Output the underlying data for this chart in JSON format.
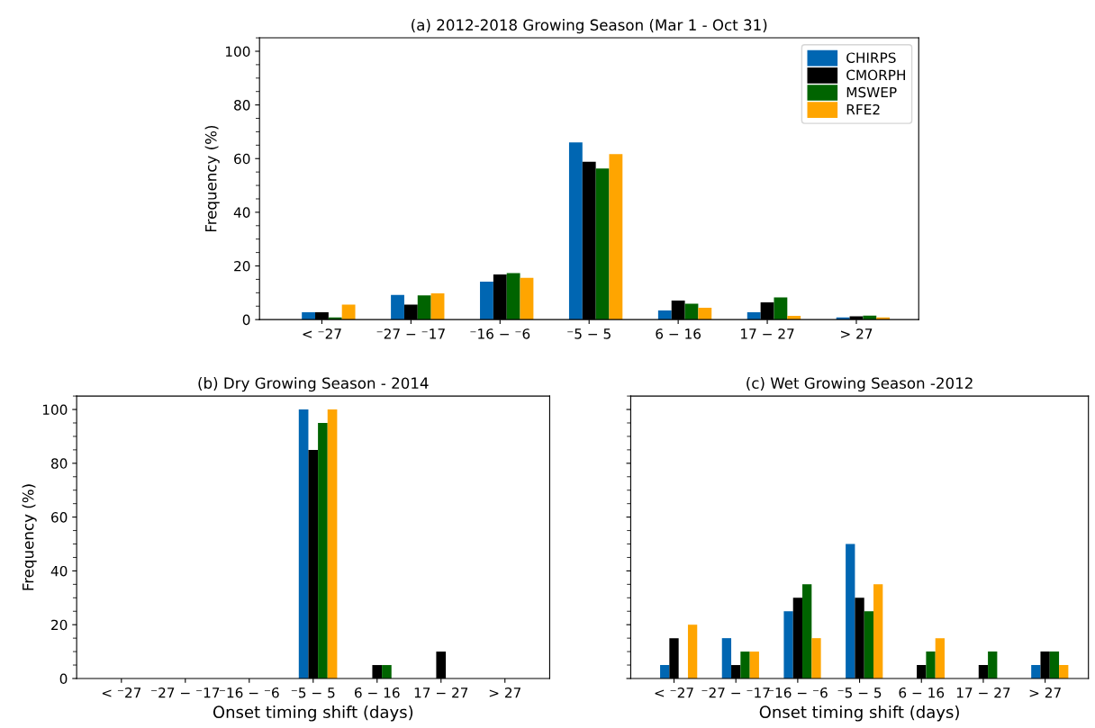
{
  "chart_data": [
    {
      "type": "bar",
      "title": "(a) 2012-2018 Growing Season (Mar 1 - Oct 31)",
      "ylabel": "Frequency (%)",
      "categories": [
        "< ⁻27",
        "⁻27 − ⁻17",
        "⁻16 − ⁻6",
        "⁻5 − 5",
        "6 − 16",
        "17 − 27",
        "> 27"
      ],
      "series": [
        {
          "name": "CHIRPS",
          "color": "#0066b2",
          "values": [
            2.7,
            9.2,
            14.1,
            66,
            3.4,
            2.7,
            0.8
          ]
        },
        {
          "name": "CMORPH",
          "color": "#000000",
          "values": [
            2.7,
            5.6,
            16.8,
            58.8,
            7.1,
            6.4,
            1.2
          ]
        },
        {
          "name": "MSWEP",
          "color": "#006400",
          "values": [
            0.8,
            9.0,
            17.3,
            56.3,
            5.9,
            8.3,
            1.5
          ]
        },
        {
          "name": "RFE2",
          "color": "#ffa500",
          "values": [
            5.6,
            9.8,
            15.6,
            61.7,
            4.4,
            1.4,
            0.8
          ]
        }
      ],
      "ylim": [
        0,
        105
      ],
      "yticks": [
        0,
        20,
        40,
        60,
        80,
        100
      ],
      "legend": "top right",
      "grid": false
    },
    {
      "type": "bar",
      "title": "(b) Dry Growing Season - 2014",
      "ylabel": "Frequency (%)",
      "xlabel": "Onset timing shift (days)",
      "categories": [
        "< ⁻27",
        "⁻27 − ⁻17",
        "⁻16 − ⁻6",
        "⁻5 − 5",
        "6 − 16",
        "17 − 27",
        "> 27"
      ],
      "series": [
        {
          "color": "#0066b2",
          "values": [
            0,
            0,
            0,
            100,
            0,
            0,
            0
          ]
        },
        {
          "color": "#000000",
          "values": [
            0,
            0,
            0,
            85,
            5,
            10,
            0
          ]
        },
        {
          "color": "#006400",
          "values": [
            0,
            0,
            0,
            95,
            5,
            0,
            0
          ]
        },
        {
          "color": "#ffa500",
          "values": [
            0,
            0,
            0,
            100,
            0,
            0,
            0
          ]
        }
      ],
      "ylim": [
        0,
        105
      ],
      "yticks": [
        0,
        20,
        40,
        60,
        80,
        100
      ],
      "grid": false
    },
    {
      "type": "bar",
      "title": "(c) Wet Growing Season -2012",
      "xlabel": "Onset timing shift (days)",
      "categories": [
        "< ⁻27",
        "⁻27 − ⁻17",
        "⁻16 − ⁻6",
        "⁻5 − 5",
        "6 − 16",
        "17 − 27",
        "> 27"
      ],
      "series": [
        {
          "color": "#0066b2",
          "values": [
            5,
            15,
            25,
            50,
            0,
            0,
            5
          ]
        },
        {
          "color": "#000000",
          "values": [
            15,
            5,
            30,
            30,
            5,
            5,
            10
          ]
        },
        {
          "color": "#006400",
          "values": [
            0,
            10,
            35,
            25,
            10,
            10,
            10
          ]
        },
        {
          "color": "#ffa500",
          "values": [
            20,
            10,
            15,
            35,
            15,
            0,
            5
          ]
        }
      ],
      "ylim": [
        0,
        105
      ],
      "yticks": [
        0,
        20,
        40,
        60,
        80,
        100
      ],
      "tick_labels": "x",
      "grid": false
    }
  ]
}
